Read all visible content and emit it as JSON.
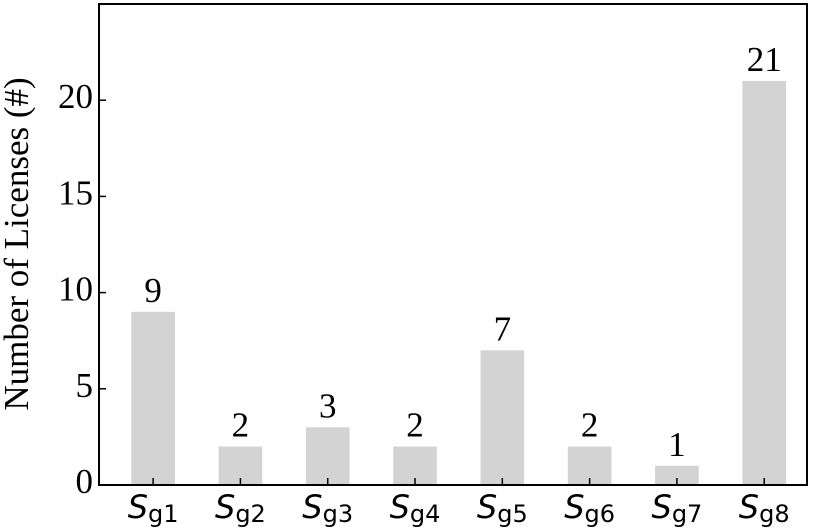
{
  "chart_data": {
    "type": "bar",
    "y_label": "Number of Licenses (#)",
    "categories": [
      "Sg1",
      "Sg2",
      "Sg3",
      "Sg4",
      "Sg5",
      "Sg6",
      "Sg7",
      "Sg8"
    ],
    "values": [
      9,
      2,
      3,
      2,
      7,
      2,
      1,
      21
    ],
    "color": "#d3d3d3",
    "ylim": [
      0,
      25
    ],
    "yticks": [
      0,
      5,
      10,
      15,
      20
    ],
    "grid": false
  }
}
